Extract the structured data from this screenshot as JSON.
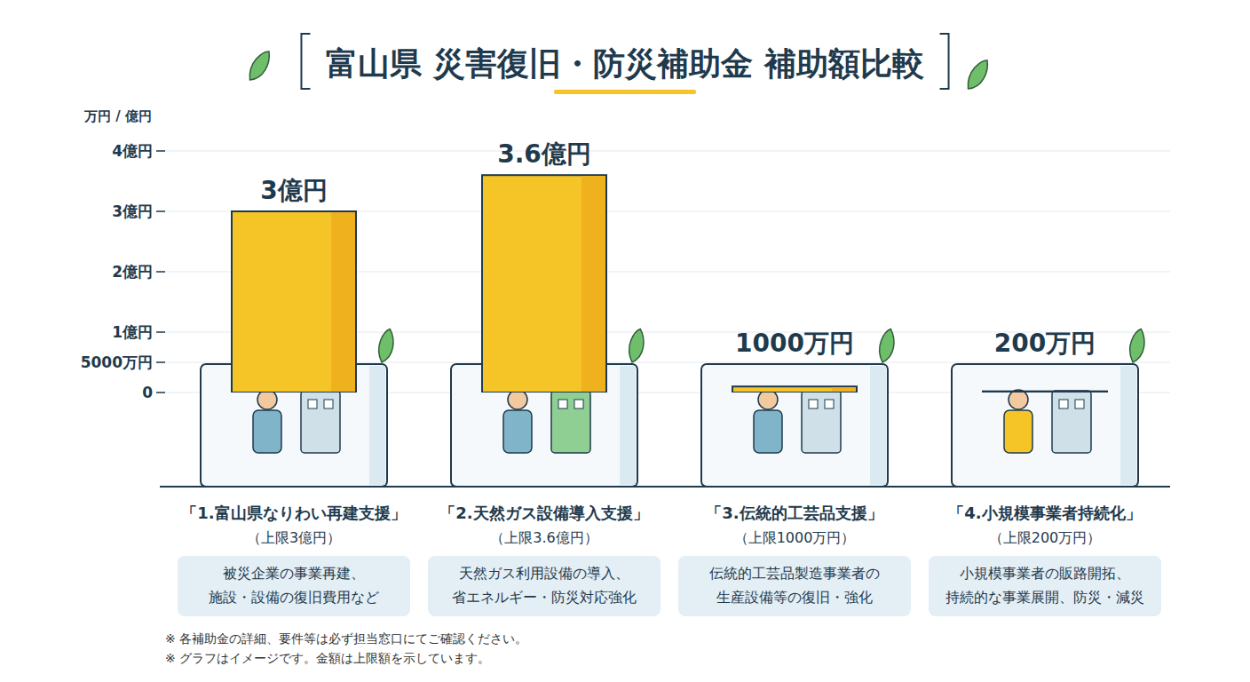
{
  "chart_data": {
    "type": "bar",
    "title": "富山県 災害復旧・防災補助金 補助額比較",
    "y_label": "万円 / 億円",
    "categories": [
      "「1.富山県なりわい再建支援」",
      "「2.天然ガス設備導入支援」",
      "「3.伝統的工芸品支援」",
      "「4.小規模事業者持続化」"
    ],
    "subtitles": [
      "（上限3億円）",
      "（上限3.6億円）",
      "（上限1000万円）",
      "（上限200万円）"
    ],
    "descriptions": [
      [
        "被災企業の事業再建、",
        "施設・設備の復旧費用など"
      ],
      [
        "天然ガス利用設備の導入、",
        "省エネルギー・防災対応強化"
      ],
      [
        "伝統的工芸品製造事業者の",
        "生産設備等の復旧・強化"
      ],
      [
        "小規模事業者の販路開拓、",
        "持続的な事業展開、防災・減災"
      ]
    ],
    "values": [
      30000,
      36000,
      1000,
      200
    ],
    "value_labels": [
      "3億円",
      "3.6億円",
      "1000万円",
      "200万円"
    ],
    "data_labels": true,
    "color": "#f5c426",
    "ylim": [
      0,
      40000
    ],
    "yticks": [
      0,
      {
        "value": 5000,
        "label": "5000万円"
      },
      {
        "value": 10000,
        "label": "1億円"
      },
      {
        "value": 20000,
        "label": "2億円"
      },
      {
        "value": 30000,
        "label": "3億円"
      },
      {
        "value": 40000,
        "label": "4億円"
      }
    ],
    "grid": true,
    "notes": [
      "※ 各補助金の詳細、要件等は必ず担当窓口にてご確認ください。",
      "※ グラフはイメージです。金額は上限額を示しています。"
    ]
  }
}
